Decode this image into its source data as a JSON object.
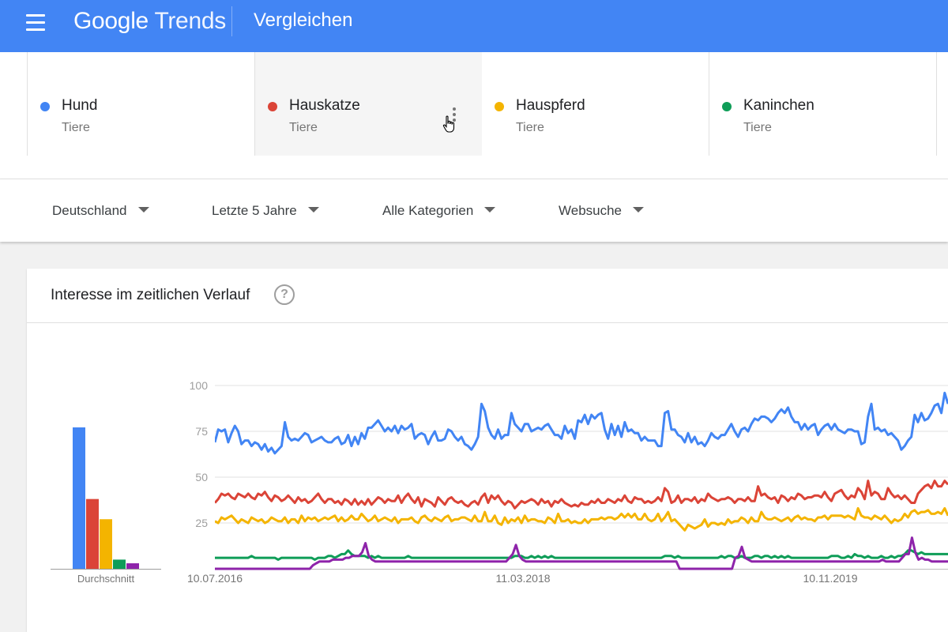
{
  "header": {
    "logo_google": "Google",
    "logo_trends": "Trends",
    "page_title": "Vergleichen"
  },
  "terms": [
    {
      "name": "Hund",
      "category": "Tiere",
      "color": "#4285f4"
    },
    {
      "name": "Hauskatze",
      "category": "Tiere",
      "color": "#db4437"
    },
    {
      "name": "Hauspferd",
      "category": "Tiere",
      "color": "#f4b400"
    },
    {
      "name": "Kaninchen",
      "category": "Tiere",
      "color": "#0f9d58"
    }
  ],
  "filters": [
    {
      "label": "Deutschland"
    },
    {
      "label": "Letzte 5 Jahre"
    },
    {
      "label": "Alle Kategorien"
    },
    {
      "label": "Websuche"
    }
  ],
  "card": {
    "title": "Interesse im zeitlichen Verlauf",
    "help_icon": "?"
  },
  "chart_data": [
    {
      "type": "bar",
      "xlabel": "Durchschnitt",
      "series": [
        {
          "color": "#4285f4",
          "values": [
            77
          ]
        },
        {
          "color": "#db4437",
          "values": [
            38
          ]
        },
        {
          "color": "#f4b400",
          "values": [
            27
          ]
        },
        {
          "color": "#0f9d58",
          "values": [
            5
          ]
        },
        {
          "color": "#8e24aa",
          "values": [
            3
          ]
        }
      ]
    },
    {
      "type": "line",
      "ylim": [
        0,
        100
      ],
      "yticks": [
        100,
        75,
        50,
        25
      ],
      "xtick_labels": [
        "10.07.2016",
        "11.03.2018",
        "10.11.2019"
      ],
      "x_start": "10.07.2016",
      "x_end": "2020-04-26",
      "series": [
        {
          "color": "#4285f4",
          "values": [
            69,
            76,
            75,
            76,
            69,
            74,
            78,
            75,
            68,
            70,
            70,
            67,
            69,
            68,
            65,
            68,
            64,
            66,
            63,
            65,
            67,
            80,
            72,
            70,
            71,
            70,
            72,
            74,
            73,
            69,
            70,
            71,
            72,
            70,
            69,
            69,
            71,
            72,
            68,
            69,
            73,
            67,
            72,
            68,
            74,
            71,
            77,
            77,
            79,
            81,
            78,
            75,
            77,
            75,
            78,
            74,
            78,
            76,
            77,
            79,
            71,
            73,
            74,
            73,
            68,
            72,
            75,
            70,
            70,
            71,
            76,
            75,
            72,
            70,
            72,
            68,
            67,
            65,
            68,
            72,
            90,
            86,
            77,
            73,
            71,
            76,
            71,
            73,
            73,
            85,
            79,
            77,
            75,
            79,
            79,
            75,
            76,
            77,
            76,
            78,
            79,
            76,
            73,
            73,
            71,
            78,
            74,
            76,
            71,
            81,
            80,
            84,
            79,
            84,
            82,
            84,
            85,
            76,
            71,
            79,
            73,
            78,
            72,
            80,
            75,
            76,
            74,
            74,
            70,
            72,
            70,
            70,
            70,
            67,
            67,
            85,
            86,
            76,
            76,
            73,
            72,
            69,
            74,
            69,
            72,
            68,
            69,
            67,
            70,
            74,
            72,
            71,
            73,
            73,
            76,
            79,
            75,
            72,
            76,
            77,
            75,
            79,
            82,
            81,
            83,
            83,
            82,
            80,
            82,
            85,
            87,
            85,
            88,
            83,
            80,
            80,
            76,
            79,
            76,
            78,
            79,
            73,
            76,
            78,
            79,
            76,
            79,
            76,
            75,
            74,
            76,
            76,
            75,
            75,
            68,
            69,
            83,
            90,
            76,
            77,
            75,
            76,
            73,
            74,
            72,
            70,
            65,
            67,
            70,
            72,
            84,
            80,
            85,
            81,
            82,
            85,
            89,
            90,
            85,
            96,
            90
          ]
        },
        {
          "color": "#db4437",
          "values": [
            36,
            38,
            41,
            40,
            41,
            39,
            38,
            41,
            40,
            39,
            41,
            39,
            38,
            41,
            40,
            42,
            39,
            37,
            40,
            39,
            37,
            38,
            40,
            38,
            36,
            39,
            37,
            38,
            36,
            37,
            39,
            41,
            38,
            36,
            38,
            38,
            36,
            37,
            35,
            38,
            37,
            35,
            38,
            35,
            37,
            35,
            38,
            35,
            37,
            39,
            38,
            36,
            38,
            37,
            37,
            40,
            36,
            39,
            41,
            38,
            36,
            39,
            34,
            38,
            37,
            36,
            34,
            39,
            37,
            35,
            38,
            39,
            37,
            36,
            37,
            35,
            34,
            36,
            37,
            35,
            39,
            41,
            36,
            40,
            38,
            40,
            37,
            35,
            37,
            36,
            33,
            35,
            37,
            36,
            37,
            38,
            37,
            35,
            38,
            36,
            37,
            34,
            37,
            36,
            38,
            36,
            35,
            34,
            35,
            34,
            36,
            35,
            35,
            37,
            36,
            38,
            36,
            36,
            38,
            37,
            36,
            38,
            37,
            40,
            37,
            36,
            39,
            38,
            38,
            36,
            37,
            36,
            37,
            39,
            37,
            44,
            42,
            36,
            37,
            40,
            36,
            38,
            38,
            37,
            39,
            36,
            38,
            37,
            41,
            39,
            38,
            37,
            38,
            38,
            39,
            38,
            36,
            38,
            38,
            37,
            39,
            37,
            37,
            45,
            40,
            41,
            39,
            38,
            39,
            36,
            40,
            39,
            37,
            39,
            38,
            41,
            40,
            38,
            39,
            39,
            40,
            40,
            39,
            42,
            39,
            37,
            41,
            42,
            43,
            40,
            38,
            40,
            39,
            44,
            42,
            38,
            48,
            40,
            42,
            41,
            38,
            38,
            44,
            41,
            39,
            40,
            38,
            40,
            38,
            36,
            36,
            41,
            43,
            45,
            46,
            44,
            48,
            45,
            45,
            48,
            46
          ]
        },
        {
          "color": "#f4b400",
          "values": [
            26,
            25,
            28,
            27,
            28,
            29,
            27,
            25,
            27,
            26,
            25,
            28,
            27,
            26,
            27,
            25,
            26,
            28,
            27,
            26,
            26,
            28,
            25,
            27,
            27,
            25,
            29,
            26,
            28,
            27,
            28,
            26,
            27,
            28,
            27,
            28,
            29,
            26,
            28,
            26,
            27,
            29,
            27,
            27,
            30,
            28,
            26,
            27,
            29,
            26,
            27,
            28,
            27,
            26,
            28,
            25,
            27,
            27,
            27,
            28,
            26,
            25,
            28,
            29,
            27,
            26,
            28,
            27,
            26,
            28,
            29,
            26,
            27,
            27,
            28,
            28,
            27,
            26,
            29,
            26,
            26,
            31,
            26,
            26,
            29,
            25,
            24,
            28,
            25,
            27,
            26,
            28,
            25,
            29,
            26,
            27,
            27,
            26,
            26,
            25,
            28,
            27,
            25,
            30,
            26,
            26,
            27,
            25,
            26,
            25,
            25,
            27,
            25,
            27,
            27,
            27,
            28,
            27,
            28,
            28,
            27,
            28,
            30,
            28,
            30,
            28,
            30,
            27,
            27,
            30,
            27,
            26,
            27,
            30,
            26,
            28,
            31,
            26,
            27,
            25,
            23,
            21,
            24,
            23,
            22,
            23,
            24,
            27,
            23,
            25,
            25,
            24,
            25,
            24,
            27,
            25,
            26,
            26,
            28,
            27,
            25,
            28,
            26,
            26,
            31,
            28,
            27,
            27,
            28,
            27,
            26,
            27,
            28,
            26,
            28,
            29,
            27,
            28,
            27,
            27,
            26,
            28,
            28,
            29,
            27,
            29,
            29,
            29,
            29,
            28,
            29,
            28,
            27,
            33,
            29,
            28,
            28,
            27,
            29,
            28,
            27,
            29,
            27,
            25,
            27,
            26,
            27,
            30,
            28,
            31,
            32,
            30,
            31,
            31,
            32,
            30,
            30,
            31,
            30,
            33,
            29
          ]
        },
        {
          "color": "#0f9d58",
          "values": [
            6,
            6,
            6,
            6,
            6,
            6,
            6,
            6,
            6,
            6,
            6,
            7,
            6,
            6,
            6,
            6,
            6,
            6,
            6,
            5,
            6,
            6,
            6,
            6,
            6,
            6,
            6,
            6,
            6,
            6,
            5,
            6,
            6,
            6,
            7,
            7,
            6,
            7,
            8,
            8,
            10,
            8,
            7,
            7,
            7,
            7,
            6,
            7,
            6,
            7,
            6,
            6,
            6,
            6,
            6,
            6,
            6,
            6,
            7,
            6,
            6,
            6,
            6,
            6,
            6,
            6,
            6,
            6,
            6,
            6,
            6,
            6,
            6,
            6,
            6,
            6,
            6,
            6,
            6,
            6,
            6,
            6,
            6,
            6,
            6,
            6,
            6,
            6,
            6,
            6,
            7,
            7,
            7,
            6,
            6,
            7,
            6,
            7,
            6,
            7,
            6,
            7,
            6,
            6,
            6,
            6,
            6,
            6,
            6,
            6,
            6,
            6,
            6,
            6,
            6,
            6,
            6,
            6,
            6,
            6,
            6,
            6,
            6,
            6,
            6,
            6,
            6,
            6,
            6,
            6,
            6,
            6,
            6,
            6,
            6,
            7,
            7,
            7,
            6,
            7,
            6,
            6,
            6,
            6,
            6,
            6,
            6,
            6,
            6,
            6,
            6,
            6,
            7,
            6,
            7,
            7,
            6,
            6,
            7,
            6,
            6,
            6,
            7,
            7,
            6,
            7,
            7,
            6,
            7,
            6,
            7,
            6,
            7,
            6,
            6,
            6,
            6,
            6,
            6,
            6,
            6,
            6,
            6,
            6,
            6,
            7,
            7,
            7,
            6,
            6,
            7,
            6,
            8,
            7,
            7,
            6,
            7,
            6,
            6,
            6,
            7,
            6,
            6,
            7,
            6,
            7,
            7,
            8,
            10,
            10,
            9,
            8,
            9,
            8,
            8,
            8,
            8,
            8,
            8,
            8,
            8
          ]
        },
        {
          "color": "#8e24aa",
          "values": [
            0,
            0,
            0,
            0,
            0,
            0,
            0,
            0,
            0,
            0,
            0,
            0,
            0,
            0,
            0,
            0,
            0,
            0,
            0,
            0,
            0,
            0,
            0,
            0,
            0,
            0,
            0,
            0,
            0,
            0,
            2,
            3,
            4,
            4,
            4,
            4,
            5,
            5,
            5,
            5,
            6,
            6,
            7,
            7,
            7,
            9,
            14,
            7,
            5,
            4,
            4,
            4,
            4,
            4,
            4,
            4,
            4,
            4,
            4,
            4,
            4,
            4,
            4,
            4,
            4,
            4,
            4,
            4,
            4,
            4,
            4,
            4,
            4,
            4,
            4,
            4,
            4,
            4,
            4,
            4,
            4,
            4,
            4,
            4,
            4,
            4,
            4,
            4,
            4,
            4,
            6,
            8,
            13,
            7,
            5,
            4,
            4,
            4,
            4,
            4,
            4,
            4,
            4,
            4,
            4,
            4,
            4,
            4,
            4,
            4,
            4,
            4,
            4,
            4,
            4,
            4,
            4,
            4,
            4,
            4,
            4,
            4,
            4,
            4,
            4,
            4,
            4,
            4,
            4,
            4,
            4,
            4,
            4,
            4,
            4,
            4,
            4,
            4,
            4,
            4,
            4,
            4,
            0,
            0,
            0,
            0,
            0,
            0,
            0,
            0,
            0,
            0,
            0,
            0,
            0,
            0,
            0,
            0,
            0,
            6,
            7,
            12,
            6,
            5,
            4,
            4,
            4,
            4,
            4,
            4,
            4,
            4,
            4,
            4,
            4,
            4,
            4,
            4,
            4,
            4,
            4,
            4,
            4,
            4,
            4,
            4,
            4,
            4,
            4,
            4,
            4,
            4,
            4,
            4,
            4,
            4,
            4,
            4,
            4,
            4,
            4,
            4,
            4,
            4,
            5,
            4,
            4,
            4,
            4,
            4,
            6,
            8,
            8,
            17,
            9,
            5,
            6,
            5,
            5,
            4,
            4,
            4,
            4,
            4,
            4
          ]
        }
      ]
    }
  ]
}
